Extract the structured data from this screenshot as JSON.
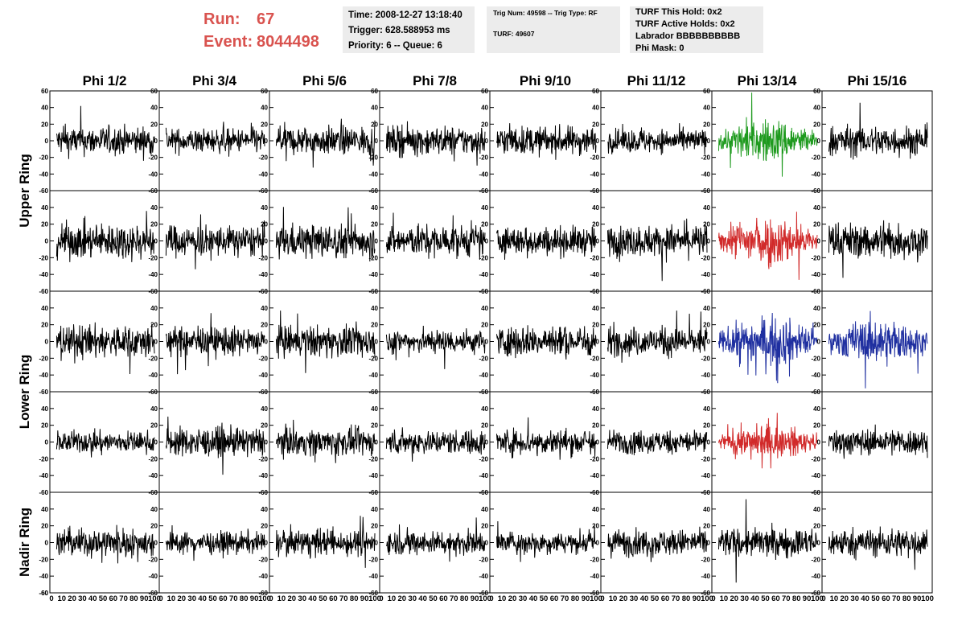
{
  "run_info": {
    "run_label": "Run:",
    "run_value": "67",
    "event_label": "Event:",
    "event_value": "8044498"
  },
  "trigger_box": {
    "time": "Time: 2008-12-27 13:18:40",
    "trigger": "Trigger: 628.588953 ms",
    "priority": "Priority: 6 -- Queue: 6"
  },
  "trig_box": {
    "trig_num": "Trig Num: 49598 -- Trig Type: RF",
    "turf": "TURF: 49607"
  },
  "turf_box": {
    "this_hold": "TURF This Hold: 0x2",
    "active_holds": "TURF Active Holds: 0x2",
    "labrador": "Labrador BBBBBBBBBB",
    "phi_mask": "Phi Mask: 0"
  },
  "colors": {
    "background": "#ffffff",
    "run_text": "#d9534f",
    "box_bg": "#ececec",
    "trace_default": "#000000",
    "trace_green": "#1e9a1e",
    "trace_red": "#d12a2a",
    "trace_blue": "#1f2fa0"
  },
  "chart_data": {
    "type": "line",
    "grid": false,
    "columns": [
      "Phi 1/2",
      "Phi 3/4",
      "Phi 5/6",
      "Phi 7/8",
      "Phi 9/10",
      "Phi 11/12",
      "Phi 13/14",
      "Phi 15/16"
    ],
    "rows": [
      "Upper Ring",
      "Upper Ring",
      "Lower Ring",
      "Lower Ring",
      "Nadir Ring"
    ],
    "row_labels": [
      "Upper Ring",
      "Lower Ring",
      "Nadir Ring"
    ],
    "xlim": [
      0,
      100
    ],
    "ylim": [
      -60,
      60
    ],
    "x_ticks": [
      "0",
      "10",
      "20",
      "30",
      "40",
      "50",
      "60",
      "70",
      "80",
      "90",
      "100"
    ],
    "y_ticks": [
      "60",
      "40",
      "20",
      "0",
      "-20",
      "-40",
      "-60"
    ],
    "n_samples": 260,
    "noise_amplitude": [
      [
        12,
        10,
        12,
        12,
        12,
        10,
        14,
        13
      ],
      [
        15,
        13,
        14,
        13,
        12,
        13,
        16,
        15
      ],
      [
        14,
        12,
        13,
        10,
        13,
        12,
        16,
        15
      ],
      [
        9,
        12,
        11,
        10,
        11,
        10,
        11,
        11
      ],
      [
        12,
        9,
        11,
        10,
        9,
        11,
        12,
        12
      ]
    ],
    "highlighted": [
      {
        "row": 0,
        "col": 6,
        "color": "green"
      },
      {
        "row": 1,
        "col": 6,
        "color": "red"
      },
      {
        "row": 2,
        "col": 6,
        "color": "blue"
      },
      {
        "row": 2,
        "col": 7,
        "color": "blue"
      },
      {
        "row": 3,
        "col": 6,
        "color": "red"
      }
    ]
  }
}
